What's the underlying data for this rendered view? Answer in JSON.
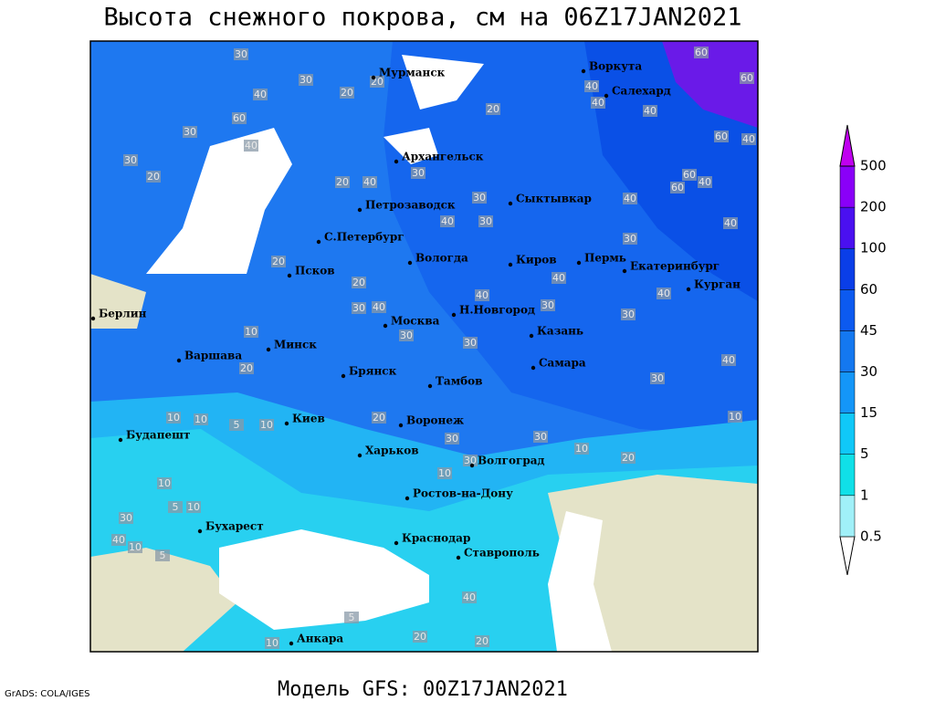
{
  "header": {
    "title": "Высота снежного покрова, см на 06Z17JAN2021"
  },
  "cities": [
    "Мурманск",
    "Воркута",
    "Салехард",
    "Архангельск",
    "Сыктывкар",
    "Петрозаводск",
    "С.Петербург",
    "Вологда",
    "Киров",
    "Пермь",
    "Екатеринбург",
    "Курган",
    "Псков",
    "Берлин",
    "Москва",
    "Н.Новгород",
    "Казань",
    "Минск",
    "Варшава",
    "Брянск",
    "Самара",
    "Тамбов",
    "Киев",
    "Воронеж",
    "Будапешт",
    "Харьков",
    "Волгоград",
    "Ростов-на-Дону",
    "Бухарест",
    "Краснодар",
    "Ставрополь",
    "Анкара"
  ],
  "contour_labels": [
    "60",
    "60",
    "40",
    "40",
    "40",
    "60",
    "40",
    "60",
    "60",
    "40",
    "40",
    "40",
    "30",
    "40",
    "30",
    "40",
    "30",
    "10",
    "10",
    "20",
    "30",
    "30",
    "20",
    "10",
    "20",
    "30",
    "30",
    "30",
    "40",
    "20",
    "30",
    "40",
    "30",
    "20",
    "20",
    "40",
    "30",
    "40",
    "30",
    "30",
    "40",
    "30",
    "10",
    "20",
    "5",
    "10",
    "10",
    "10",
    "20",
    "10",
    "5",
    "10",
    "30",
    "40",
    "10",
    "5",
    "30",
    "40",
    "60",
    "40",
    "30",
    "30",
    "20",
    "20",
    "40",
    "10",
    "20",
    "20",
    "5"
  ],
  "legend": {
    "labels": [
      0.5,
      1,
      5,
      15,
      30,
      45,
      60,
      100,
      200,
      500
    ]
  },
  "footer": {
    "model": "Модель GFS: 00Z17JAN2021",
    "credit": "GrADS: COLA/IGES"
  }
}
